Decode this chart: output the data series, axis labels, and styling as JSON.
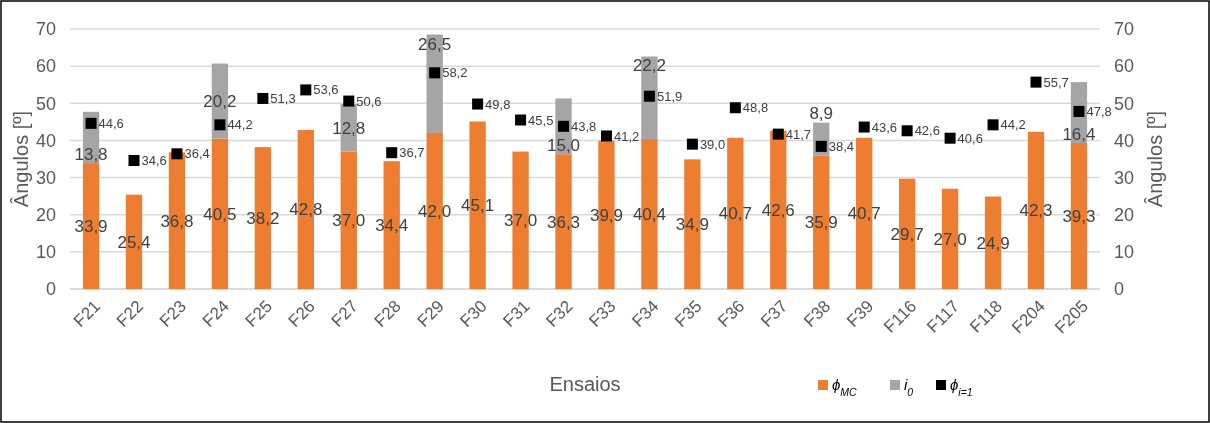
{
  "chart_data": {
    "type": "bar",
    "stacked": true,
    "xlabel": "Ensaios",
    "ylabel": "Ângulos [º]",
    "y2label": "Ângulos [º]",
    "categories": [
      "F21",
      "F22",
      "F23",
      "F24",
      "F25",
      "F26",
      "F27",
      "F28",
      "F29",
      "F30",
      "F31",
      "F32",
      "F33",
      "F34",
      "F35",
      "F36",
      "F37",
      "F38",
      "F39",
      "F116",
      "F117",
      "F118",
      "F204",
      "F205"
    ],
    "series": [
      {
        "name": "ϕ$_{MC}$",
        "color": "#ed7d31",
        "values": [
          33.9,
          25.4,
          36.8,
          40.5,
          38.2,
          42.8,
          37.0,
          34.4,
          42.0,
          45.1,
          37.0,
          36.3,
          39.9,
          40.4,
          34.9,
          40.7,
          42.6,
          35.9,
          40.7,
          29.7,
          27.0,
          24.9,
          42.3,
          39.3
        ],
        "value_labels": [
          "33,9",
          "25,4",
          "36,8",
          "40,5",
          "38,2",
          "42,8",
          "37,0",
          "34,4",
          "42,0",
          "45,1",
          "37,0",
          "36,3",
          "39,9",
          "40,4",
          "34,9",
          "40,7",
          "42,6",
          "35,9",
          "40,7",
          "29,7",
          "27,0",
          "24,9",
          "42,3",
          "39,3"
        ]
      },
      {
        "name": "i$_{0}$",
        "color": "#a5a5a5",
        "values": [
          13.8,
          null,
          null,
          20.2,
          null,
          null,
          12.8,
          null,
          26.5,
          null,
          null,
          15.0,
          null,
          22.2,
          null,
          null,
          null,
          8.9,
          null,
          null,
          null,
          null,
          null,
          16.4
        ],
        "value_labels": [
          "13,8",
          null,
          null,
          "20,2",
          null,
          null,
          "12,8",
          null,
          "26,5",
          null,
          null,
          "15,0",
          null,
          "22,2",
          null,
          null,
          null,
          "8,9",
          null,
          null,
          null,
          null,
          null,
          "16,4"
        ]
      },
      {
        "name": "ϕ$_{i=1}$",
        "type": "scatter",
        "marker": "square",
        "color": "#000000",
        "values": [
          44.6,
          34.6,
          36.4,
          44.2,
          51.3,
          53.6,
          50.6,
          36.7,
          58.2,
          49.8,
          45.5,
          43.8,
          41.2,
          51.9,
          39.0,
          48.8,
          41.7,
          38.4,
          43.6,
          42.6,
          40.6,
          44.2,
          55.7,
          47.8
        ],
        "value_labels": [
          "44,6",
          "34,6",
          "36,4",
          "44,2",
          "51,3",
          "53,6",
          "50,6",
          "36,7",
          "58,2",
          "49,8",
          "45,5",
          "43,8",
          "41,2",
          "51,9",
          "39,0",
          "48,8",
          "41,7",
          "38,4",
          "43,6",
          "42,6",
          "40,6",
          "44,2",
          "55,7",
          "47,8"
        ]
      }
    ],
    "ylim": [
      0,
      70
    ],
    "yticks": [
      0,
      10,
      20,
      30,
      40,
      50,
      60,
      70
    ],
    "y2lim": [
      0,
      70
    ],
    "y2ticks": [
      0,
      10,
      20,
      30,
      40,
      50,
      60,
      70
    ],
    "grid": "y",
    "legend": "bottom right"
  }
}
